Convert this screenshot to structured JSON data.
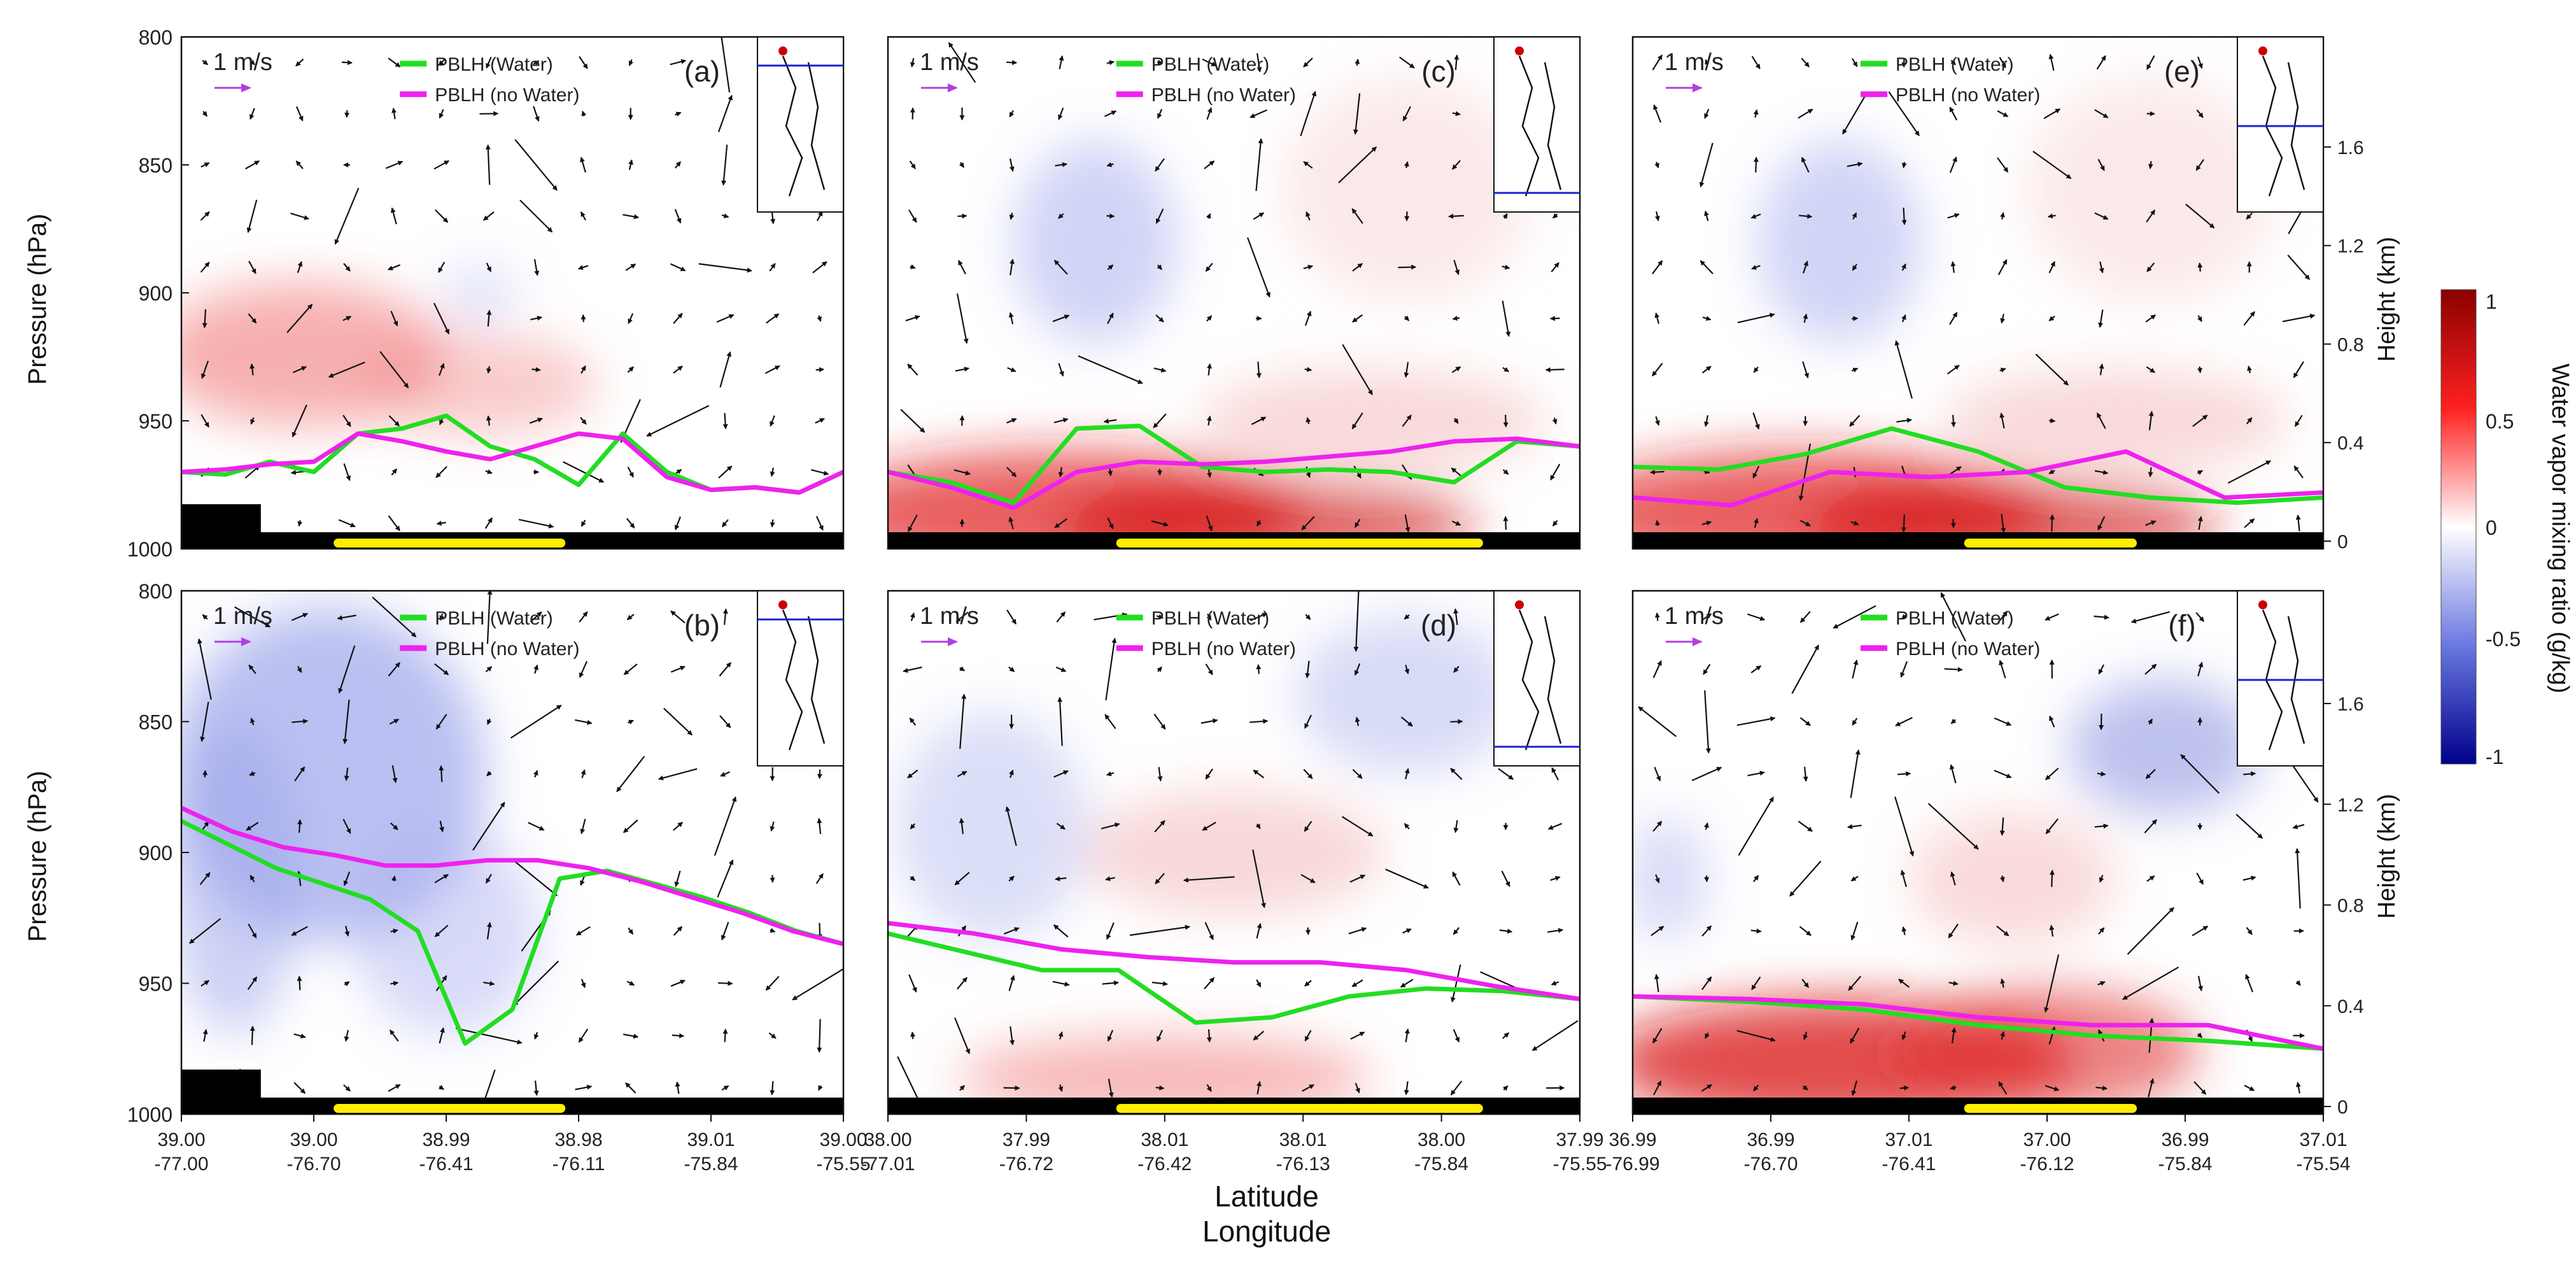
{
  "figure": {
    "x_axis_title": "Latitude",
    "x_axis_subtitle": "Longitude",
    "left_axis_title": "Pressure (hPa)",
    "right_axis_title": "Height (km)",
    "colorbar_title": "Water vapor mixing ratio (g/kg)",
    "colorbar_ticks": [
      "1",
      "0.5",
      "0",
      "-0.5",
      "-1"
    ],
    "colorbar_range": [
      -1,
      1
    ],
    "colors": {
      "pblh_water": "#22dd22",
      "pblh_no_water": "#ee22ee",
      "wind_scale_arrow": "#b040e0",
      "terrain": "#000000",
      "water_bar": "#ffee00",
      "positive": "#cc0000",
      "negative": "#1a22b0"
    },
    "wind_scale_label": "1 m/s",
    "legend": {
      "water_label": "PBLH (Water)",
      "no_water_label": "PBLH (no Water)"
    }
  },
  "chart_data": [
    {
      "type": "line",
      "panel": "(a)",
      "row": 0,
      "col": 0,
      "ylabel": "Pressure (hPa)",
      "ylim": [
        1000,
        800
      ],
      "yticks": [
        "800",
        "850",
        "900",
        "950",
        "1000"
      ],
      "series": [
        {
          "name": "PBLH (Water)",
          "pressure": [
            970,
            971,
            966,
            970,
            955,
            953,
            948,
            960,
            965,
            975,
            955,
            970,
            977,
            976,
            978,
            970
          ]
        },
        {
          "name": "PBLH (no Water)",
          "pressure": [
            970,
            969,
            967,
            966,
            955,
            958,
            962,
            965,
            960,
            955,
            957,
            972,
            977,
            976,
            978,
            970
          ]
        }
      ],
      "anomaly": "moist-low-left"
    },
    {
      "type": "line",
      "panel": "(b)",
      "row": 1,
      "col": 0,
      "ylabel": "Pressure (hPa)",
      "ylim": [
        1000,
        800
      ],
      "yticks": [
        "800",
        "850",
        "900",
        "950",
        "1000"
      ],
      "xlabel": "Latitude / Longitude",
      "xtick_lat": [
        "39.00",
        "39.00",
        "38.99",
        "38.98",
        "39.01",
        "39.00"
      ],
      "xtick_lon": [
        "-77.00",
        "-76.70",
        "-76.41",
        "-76.11",
        "-75.84",
        "-75.55"
      ],
      "series": [
        {
          "name": "PBLH (Water)",
          "pressure": [
            888,
            897,
            906,
            912,
            918,
            930,
            973,
            960,
            910,
            907,
            912,
            917,
            923,
            930,
            935
          ]
        },
        {
          "name": "PBLH (no Water)",
          "pressure": [
            883,
            892,
            898,
            901,
            905,
            905,
            903,
            903,
            906,
            911,
            917,
            923,
            930,
            935
          ]
        }
      ],
      "anomaly": "dry-left"
    },
    {
      "type": "line",
      "panel": "(c)",
      "row": 0,
      "col": 1,
      "ylim": [
        1000,
        800
      ],
      "series": [
        {
          "name": "PBLH (Water)",
          "pressure": [
            970,
            974,
            982,
            953,
            952,
            968,
            970,
            969,
            970,
            974,
            958,
            960
          ]
        },
        {
          "name": "PBLH (no Water)",
          "pressure": [
            970,
            976,
            984,
            970,
            966,
            967,
            966,
            964,
            962,
            958,
            957,
            960
          ]
        }
      ],
      "anomaly": "moist-low"
    },
    {
      "type": "line",
      "panel": "(d)",
      "row": 1,
      "col": 1,
      "ylim": [
        1000,
        800
      ],
      "xtick_lat": [
        "38.00",
        "37.99",
        "38.01",
        "38.01",
        "38.00",
        "37.99"
      ],
      "xtick_lon": [
        "-77.01",
        "-76.72",
        "-76.42",
        "-76.13",
        "-75.84",
        "-75.55"
      ],
      "series": [
        {
          "name": "PBLH (Water)",
          "pressure": [
            931,
            938,
            945,
            945,
            965,
            963,
            955,
            952,
            953,
            956
          ]
        },
        {
          "name": "PBLH (no Water)",
          "pressure": [
            927,
            931,
            937,
            940,
            942,
            942,
            945,
            951,
            956
          ]
        }
      ],
      "anomaly": "mixed"
    },
    {
      "type": "line",
      "panel": "(e)",
      "row": 0,
      "col": 2,
      "ylim": [
        1000,
        800
      ],
      "y2label": "Height (km)",
      "y2ticks": [
        "0",
        "0.4",
        "0.8",
        "1.2",
        "1.6"
      ],
      "series": [
        {
          "name": "PBLH (Water)",
          "pressure": [
            968,
            969,
            963,
            953,
            962,
            976,
            980,
            982,
            980
          ]
        },
        {
          "name": "PBLH (no Water)",
          "pressure": [
            980,
            983,
            970,
            972,
            970,
            962,
            980,
            978
          ]
        }
      ],
      "anomaly": "moist-low"
    },
    {
      "type": "line",
      "panel": "(f)",
      "row": 1,
      "col": 2,
      "ylim": [
        1000,
        800
      ],
      "y2label": "Height (km)",
      "y2ticks": [
        "0",
        "0.4",
        "0.8",
        "1.2",
        "1.6"
      ],
      "xtick_lat": [
        "36.99",
        "36.99",
        "37.01",
        "37.00",
        "36.99",
        "37.01"
      ],
      "xtick_lon": [
        "-76.99",
        "-76.70",
        "-76.41",
        "-76.12",
        "-75.84",
        "-75.54"
      ],
      "series": [
        {
          "name": "PBLH (Water)",
          "pressure": [
            955,
            957,
            960,
            966,
            970,
            972,
            975
          ]
        },
        {
          "name": "PBLH (no Water)",
          "pressure": [
            955,
            956,
            958,
            963,
            966,
            966,
            975
          ]
        }
      ],
      "anomaly": "moist-low-dry-top"
    }
  ]
}
